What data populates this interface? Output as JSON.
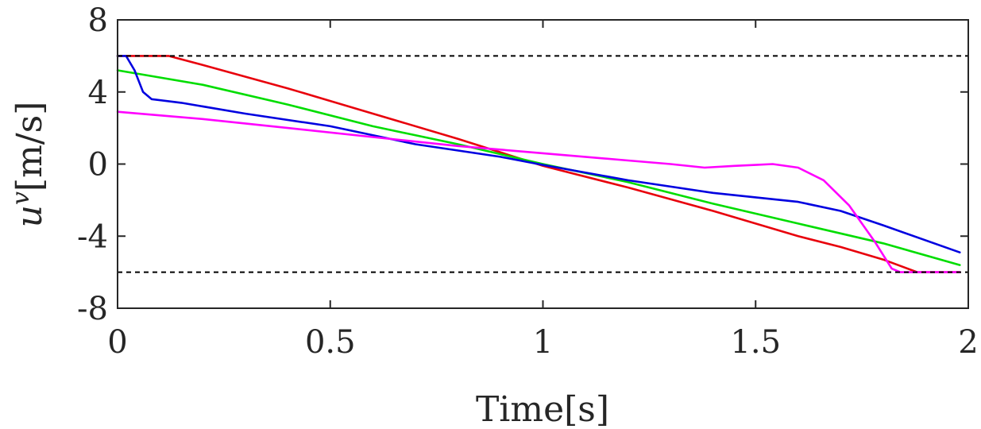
{
  "chart_data": {
    "type": "line",
    "xlabel": "Time[s]",
    "ylabel": "u^v[m/s]",
    "ylabel_base": "u",
    "ylabel_sup": "v",
    "ylabel_units": "[m/s]",
    "xlim": [
      0,
      2
    ],
    "ylim": [
      -8,
      8
    ],
    "xticks": [
      0,
      0.5,
      1,
      1.5,
      2
    ],
    "xtick_labels": [
      "0",
      "0.5",
      "1",
      "1.5",
      "2"
    ],
    "yticks": [
      -8,
      -4,
      0,
      4,
      8
    ],
    "ytick_labels": [
      "-8",
      "-4",
      "0",
      "4",
      "8"
    ],
    "grid": false,
    "reference_lines": [
      {
        "y": 6,
        "style": "dashed",
        "color": "#000000"
      },
      {
        "y": -6,
        "style": "dashed",
        "color": "#000000"
      }
    ],
    "series": [
      {
        "color": "#e8000b",
        "points": [
          [
            0,
            6
          ],
          [
            0.12,
            6
          ],
          [
            0.2,
            5.5
          ],
          [
            0.4,
            4.2
          ],
          [
            0.6,
            2.8
          ],
          [
            0.8,
            1.4
          ],
          [
            1.0,
            -0.1
          ],
          [
            1.2,
            -1.3
          ],
          [
            1.4,
            -2.6
          ],
          [
            1.6,
            -4.0
          ],
          [
            1.7,
            -4.6
          ],
          [
            1.8,
            -5.3
          ],
          [
            1.88,
            -6
          ],
          [
            1.98,
            -6
          ]
        ]
      },
      {
        "color": "#00dd00",
        "points": [
          [
            0,
            5.2
          ],
          [
            0.2,
            4.4
          ],
          [
            0.4,
            3.3
          ],
          [
            0.6,
            2.1
          ],
          [
            0.8,
            1.1
          ],
          [
            1.0,
            0.0
          ],
          [
            1.2,
            -1.0
          ],
          [
            1.4,
            -2.2
          ],
          [
            1.6,
            -3.3
          ],
          [
            1.8,
            -4.4
          ],
          [
            1.98,
            -5.6
          ]
        ]
      },
      {
        "color": "#0000e0",
        "points": [
          [
            0,
            6
          ],
          [
            0.02,
            6
          ],
          [
            0.04,
            5.2
          ],
          [
            0.06,
            4.0
          ],
          [
            0.08,
            3.6
          ],
          [
            0.15,
            3.4
          ],
          [
            0.3,
            2.8
          ],
          [
            0.5,
            2.1
          ],
          [
            0.7,
            1.1
          ],
          [
            0.9,
            0.4
          ],
          [
            1.0,
            -0.05
          ],
          [
            1.2,
            -0.9
          ],
          [
            1.4,
            -1.6
          ],
          [
            1.6,
            -2.1
          ],
          [
            1.7,
            -2.6
          ],
          [
            1.8,
            -3.4
          ],
          [
            1.98,
            -4.9
          ]
        ]
      },
      {
        "color": "#ff00ff",
        "points": [
          [
            0,
            2.9
          ],
          [
            0.2,
            2.5
          ],
          [
            0.4,
            2.0
          ],
          [
            0.6,
            1.5
          ],
          [
            0.8,
            1.0
          ],
          [
            1.0,
            0.6
          ],
          [
            1.2,
            0.2
          ],
          [
            1.3,
            0.0
          ],
          [
            1.38,
            -0.2
          ],
          [
            1.45,
            -0.1
          ],
          [
            1.5,
            -0.05
          ],
          [
            1.54,
            0.0
          ],
          [
            1.6,
            -0.2
          ],
          [
            1.66,
            -0.9
          ],
          [
            1.72,
            -2.3
          ],
          [
            1.78,
            -4.3
          ],
          [
            1.82,
            -5.8
          ],
          [
            1.84,
            -6
          ],
          [
            1.98,
            -6
          ]
        ]
      }
    ]
  }
}
